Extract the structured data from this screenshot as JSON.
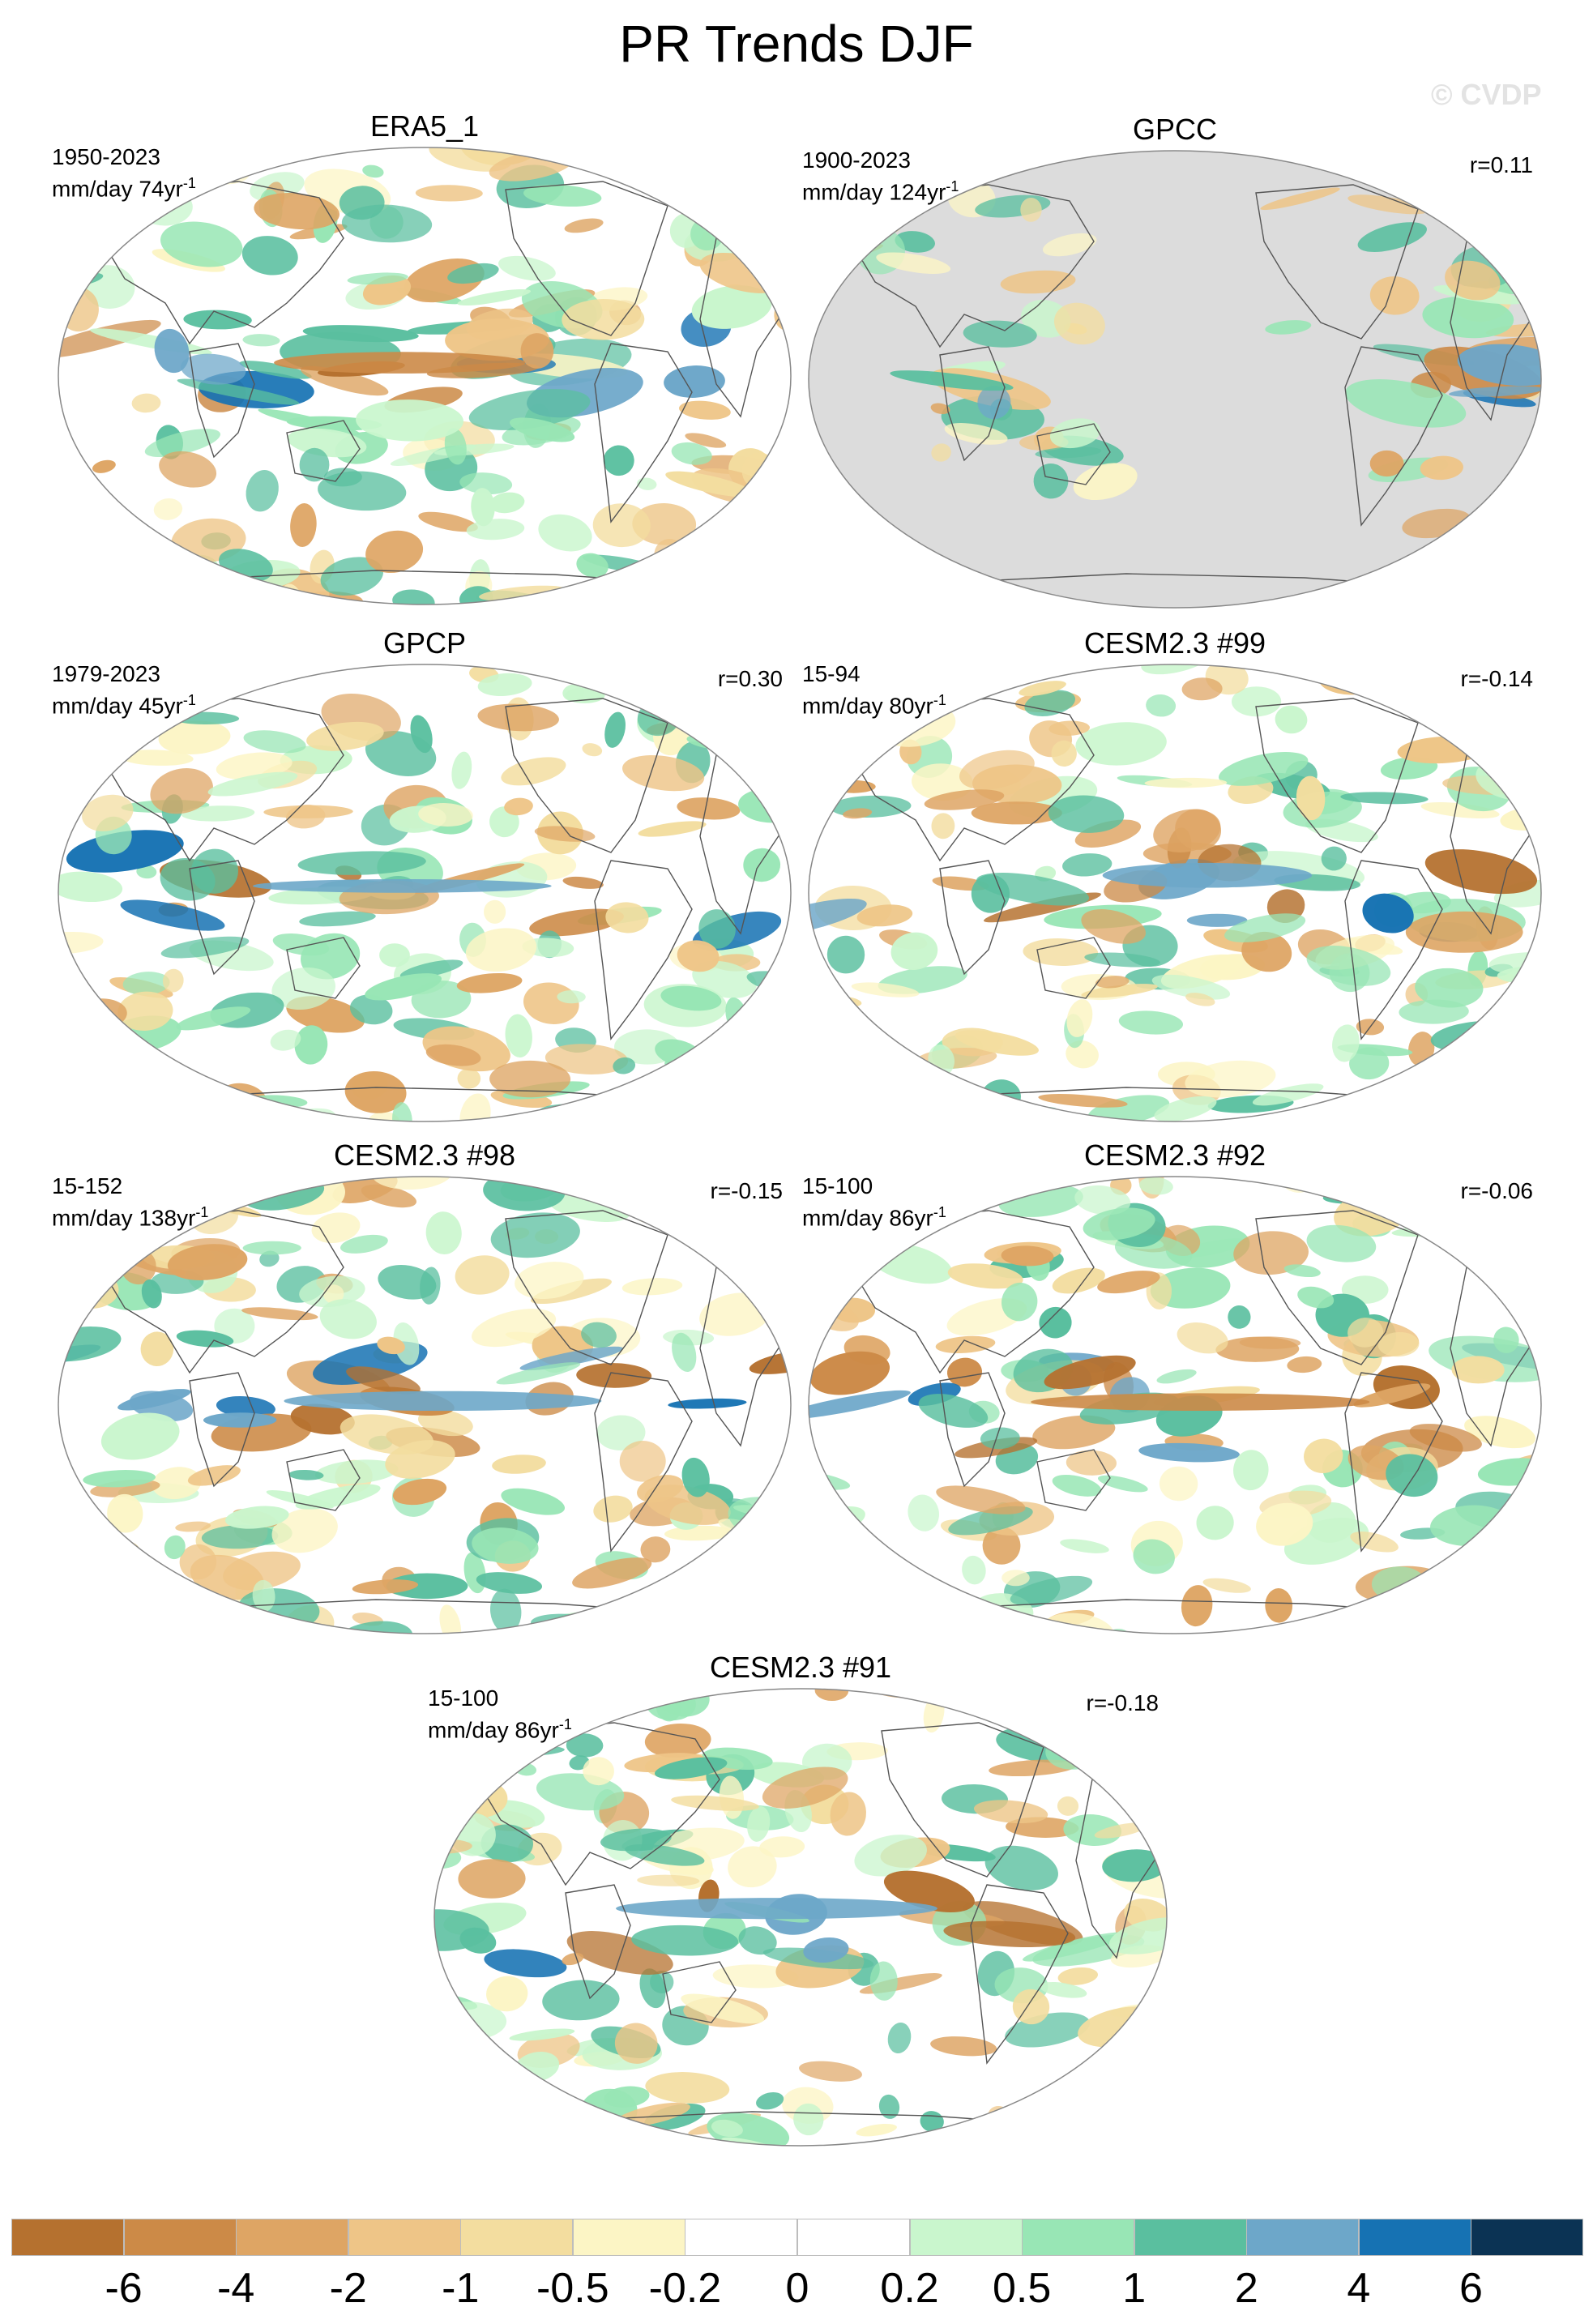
{
  "title": "PR Trends DJF",
  "watermark": "© CVDP",
  "panels": [
    {
      "name": "ERA5_1",
      "period": "1950-2023",
      "units": "mm/day 74yr",
      "units_sup": "-1",
      "corr": "",
      "missing_ocean": false
    },
    {
      "name": "GPCC",
      "period": "1900-2023",
      "units": "mm/day 124yr",
      "units_sup": "-1",
      "corr": "r=0.11",
      "missing_ocean": true
    },
    {
      "name": "GPCP",
      "period": "1979-2023",
      "units": "mm/day 45yr",
      "units_sup": "-1",
      "corr": "r=0.30",
      "missing_ocean": false
    },
    {
      "name": "CESM2.3 #99",
      "period": "15-94",
      "units": "mm/day 80yr",
      "units_sup": "-1",
      "corr": "r=-0.14",
      "missing_ocean": false
    },
    {
      "name": "CESM2.3 #98",
      "period": "15-152",
      "units": "mm/day 138yr",
      "units_sup": "-1",
      "corr": "r=-0.15",
      "missing_ocean": false
    },
    {
      "name": "CESM2.3 #92",
      "period": "15-100",
      "units": "mm/day 86yr",
      "units_sup": "-1",
      "corr": "r=-0.06",
      "missing_ocean": false
    },
    {
      "name": "CESM2.3 #91",
      "period": "15-100",
      "units": "mm/day 86yr",
      "units_sup": "-1",
      "corr": "r=-0.18",
      "missing_ocean": false
    }
  ],
  "colorbar": {
    "ticks": [
      "-6",
      "-4",
      "-2",
      "-1",
      "-0.5",
      "-0.2",
      "0",
      "0.2",
      "0.5",
      "1",
      "2",
      "4",
      "6"
    ],
    "colors": [
      "#b5712f",
      "#cc8a47",
      "#dea564",
      "#eec587",
      "#f3dd9f",
      "#fcf5c5",
      "#ffffff",
      "#ffffff",
      "#c9f6cd",
      "#98e6b5",
      "#5abf9f",
      "#6da7c9",
      "#1672b3",
      "#0b3354"
    ]
  },
  "palette": {
    "land_outline": "#555555",
    "missing": "#dcdcdc",
    "frame": "#888888"
  }
}
